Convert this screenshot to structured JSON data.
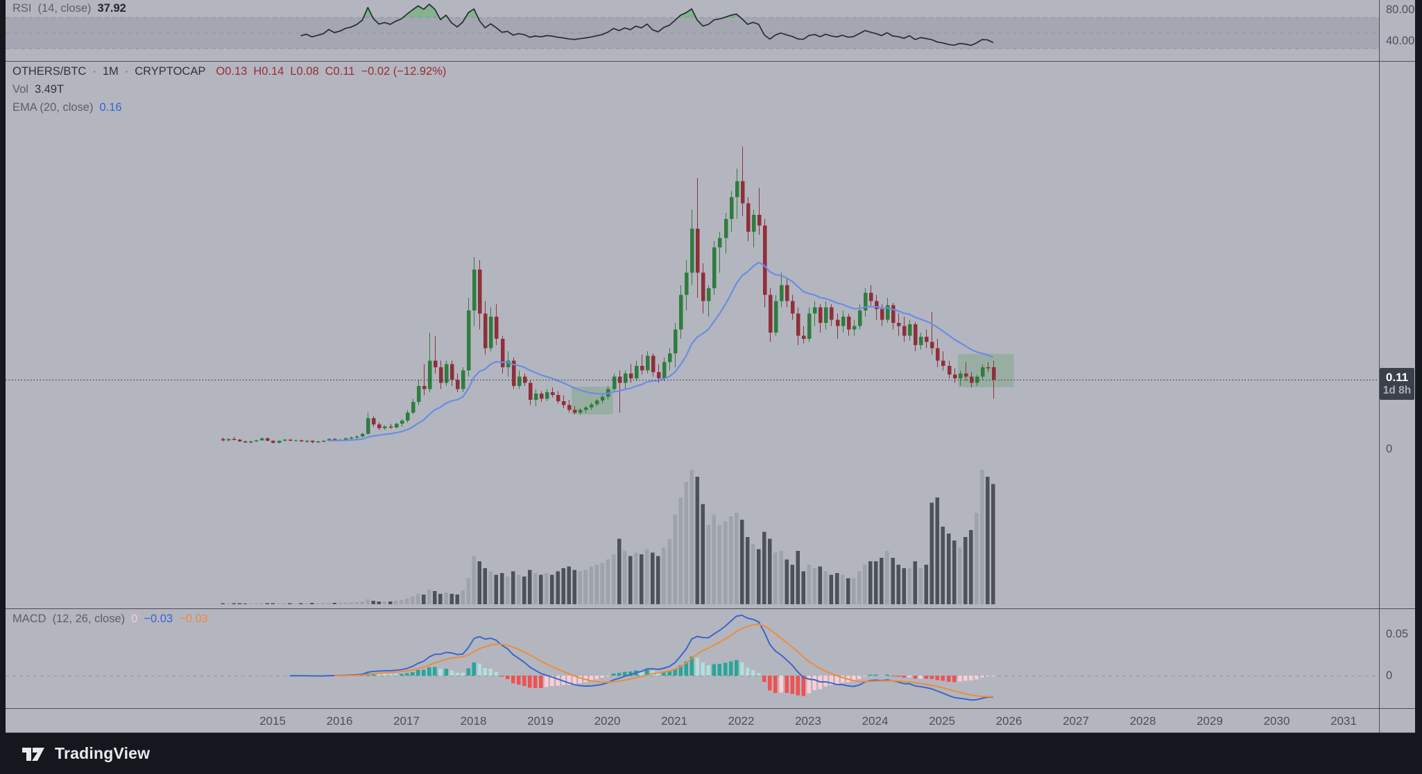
{
  "meta": {
    "dot": "·"
  },
  "rsi_pane": {
    "name": "RSI",
    "params": "(14, close)",
    "value": "37.92",
    "ticks": [
      "80.00",
      "40.00"
    ],
    "bands": [
      70,
      50,
      30
    ]
  },
  "main_pane": {
    "header": {
      "symbol": "OTHERS/BTC",
      "timeframe": "1M",
      "source": "CRYPTOCAP",
      "open": "O0.13",
      "high": "H0.14",
      "low": "L0.08",
      "close": "C0.11",
      "change": "−0.02 (−12.92%)"
    },
    "vol_label": "Vol",
    "vol_value": "3.49T",
    "ema_label": "EMA (20, close)",
    "ema_value": "0.16",
    "price_label": "0.11",
    "countdown": "1d 8h",
    "zero_tick": "0"
  },
  "macd_pane": {
    "name": "MACD",
    "params": "(12, 26, close)",
    "hist_value": "0",
    "macd_value": "−0.03",
    "signal_value": "−0.03",
    "ticks": [
      "0.05",
      "0"
    ]
  },
  "time_axis": {
    "years": [
      "2015",
      "2016",
      "2017",
      "2018",
      "2019",
      "2020",
      "2021",
      "2022",
      "2023",
      "2024",
      "2025",
      "2026",
      "2027",
      "2028",
      "2029",
      "2030",
      "2031"
    ]
  },
  "footer": {
    "brand": "TradingView"
  },
  "colors": {
    "background": "#b3b6bf",
    "frame": "#15171e",
    "candle_up": "#2e7d3e",
    "candle_down": "#8f2f39",
    "ema": "#6c8ce5",
    "rsi_line": "#262a33",
    "rsi_band_fill": "rgba(125,129,141,0.28)",
    "rsi_overbought_fill": "rgba(76,175,80,0.45)",
    "volume_up": "#9ea2ab",
    "volume_down": "#4d515a",
    "macd_line": "#3b66cc",
    "signal_line": "#ee8b3e",
    "hist_pos_grow": "#26a69a",
    "hist_pos_fall": "#b2dfdb",
    "hist_neg_fall": "#f05151",
    "hist_neg_grow": "#ffcdd2",
    "box_fill": "rgba(76,153,76,0.25)",
    "price_line": "#3a3e47",
    "separator": "#4a4e57",
    "badge_bg": "#3c404a"
  },
  "chart_data": {
    "type": "candlestick",
    "symbol": "OTHERS/BTC",
    "timeframe": "1M",
    "exchange": "CRYPTOCAP",
    "current_price": 0.11,
    "price_axis_visible_ticks": [
      0
    ],
    "start_month": "2014-04",
    "fields": [
      "open",
      "high",
      "low",
      "close",
      "volume_T"
    ],
    "months": [
      [
        0.016,
        0.018,
        0.012,
        0.014,
        0.03
      ],
      [
        0.014,
        0.017,
        0.012,
        0.016,
        0.03
      ],
      [
        0.016,
        0.019,
        0.014,
        0.015,
        0.03
      ],
      [
        0.015,
        0.016,
        0.011,
        0.012,
        0.03
      ],
      [
        0.012,
        0.014,
        0.01,
        0.011,
        0.02
      ],
      [
        0.011,
        0.013,
        0.009,
        0.012,
        0.02
      ],
      [
        0.012,
        0.015,
        0.011,
        0.014,
        0.03
      ],
      [
        0.014,
        0.018,
        0.013,
        0.017,
        0.03
      ],
      [
        0.017,
        0.018,
        0.012,
        0.013,
        0.03
      ],
      [
        0.013,
        0.014,
        0.009,
        0.01,
        0.03
      ],
      [
        0.01,
        0.014,
        0.009,
        0.013,
        0.03
      ],
      [
        0.013,
        0.016,
        0.012,
        0.015,
        0.03
      ],
      [
        0.015,
        0.016,
        0.012,
        0.013,
        0.03
      ],
      [
        0.013,
        0.015,
        0.012,
        0.014,
        0.03
      ],
      [
        0.014,
        0.015,
        0.011,
        0.012,
        0.03
      ],
      [
        0.012,
        0.014,
        0.01,
        0.013,
        0.03
      ],
      [
        0.013,
        0.014,
        0.009,
        0.011,
        0.04
      ],
      [
        0.011,
        0.013,
        0.01,
        0.012,
        0.03
      ],
      [
        0.012,
        0.014,
        0.011,
        0.013,
        0.04
      ],
      [
        0.013,
        0.017,
        0.012,
        0.016,
        0.04
      ],
      [
        0.016,
        0.017,
        0.013,
        0.014,
        0.04
      ],
      [
        0.014,
        0.016,
        0.012,
        0.015,
        0.05
      ],
      [
        0.015,
        0.018,
        0.014,
        0.017,
        0.05
      ],
      [
        0.017,
        0.02,
        0.015,
        0.018,
        0.06
      ],
      [
        0.018,
        0.022,
        0.016,
        0.02,
        0.06
      ],
      [
        0.02,
        0.026,
        0.018,
        0.024,
        0.08
      ],
      [
        0.024,
        0.058,
        0.022,
        0.049,
        0.14
      ],
      [
        0.049,
        0.052,
        0.035,
        0.039,
        0.1
      ],
      [
        0.039,
        0.043,
        0.03,
        0.033,
        0.08
      ],
      [
        0.033,
        0.038,
        0.03,
        0.036,
        0.08
      ],
      [
        0.036,
        0.04,
        0.032,
        0.034,
        0.08
      ],
      [
        0.034,
        0.042,
        0.033,
        0.04,
        0.1
      ],
      [
        0.04,
        0.048,
        0.036,
        0.045,
        0.12
      ],
      [
        0.045,
        0.062,
        0.042,
        0.058,
        0.16
      ],
      [
        0.058,
        0.08,
        0.055,
        0.075,
        0.22
      ],
      [
        0.075,
        0.11,
        0.07,
        0.1,
        0.3
      ],
      [
        0.1,
        0.135,
        0.085,
        0.095,
        0.28
      ],
      [
        0.095,
        0.185,
        0.09,
        0.14,
        0.42
      ],
      [
        0.14,
        0.18,
        0.12,
        0.13,
        0.38
      ],
      [
        0.13,
        0.14,
        0.095,
        0.105,
        0.3
      ],
      [
        0.105,
        0.14,
        0.1,
        0.135,
        0.34
      ],
      [
        0.135,
        0.14,
        0.1,
        0.11,
        0.3
      ],
      [
        0.11,
        0.12,
        0.09,
        0.095,
        0.28
      ],
      [
        0.095,
        0.13,
        0.09,
        0.125,
        0.4
      ],
      [
        0.125,
        0.24,
        0.115,
        0.22,
        0.75
      ],
      [
        0.22,
        0.305,
        0.195,
        0.285,
        1.4
      ],
      [
        0.285,
        0.3,
        0.19,
        0.215,
        1.25
      ],
      [
        0.215,
        0.235,
        0.15,
        0.16,
        1.05
      ],
      [
        0.16,
        0.225,
        0.155,
        0.21,
        0.95
      ],
      [
        0.21,
        0.23,
        0.165,
        0.175,
        0.85
      ],
      [
        0.175,
        0.18,
        0.12,
        0.13,
        0.9
      ],
      [
        0.13,
        0.155,
        0.115,
        0.14,
        0.8
      ],
      [
        0.14,
        0.145,
        0.095,
        0.1,
        0.95
      ],
      [
        0.1,
        0.125,
        0.095,
        0.115,
        0.85
      ],
      [
        0.115,
        0.12,
        0.1,
        0.105,
        0.8
      ],
      [
        0.105,
        0.11,
        0.07,
        0.078,
        1.0
      ],
      [
        0.078,
        0.095,
        0.068,
        0.088,
        0.9
      ],
      [
        0.088,
        0.092,
        0.075,
        0.08,
        0.85
      ],
      [
        0.08,
        0.095,
        0.076,
        0.09,
        0.9
      ],
      [
        0.09,
        0.098,
        0.082,
        0.086,
        0.85
      ],
      [
        0.086,
        0.092,
        0.072,
        0.076,
        0.95
      ],
      [
        0.076,
        0.085,
        0.065,
        0.07,
        1.05
      ],
      [
        0.07,
        0.078,
        0.058,
        0.062,
        1.1
      ],
      [
        0.062,
        0.068,
        0.055,
        0.058,
        1.0
      ],
      [
        0.058,
        0.065,
        0.054,
        0.062,
        0.95
      ],
      [
        0.062,
        0.068,
        0.057,
        0.066,
        1.0
      ],
      [
        0.066,
        0.074,
        0.062,
        0.071,
        1.1
      ],
      [
        0.071,
        0.08,
        0.068,
        0.077,
        1.15
      ],
      [
        0.077,
        0.086,
        0.072,
        0.083,
        1.2
      ],
      [
        0.083,
        0.1,
        0.078,
        0.095,
        1.3
      ],
      [
        0.095,
        0.12,
        0.09,
        0.115,
        1.45
      ],
      [
        0.115,
        0.125,
        0.058,
        0.105,
        1.9
      ],
      [
        0.105,
        0.125,
        0.095,
        0.12,
        1.55
      ],
      [
        0.12,
        0.135,
        0.105,
        0.112,
        1.4
      ],
      [
        0.112,
        0.14,
        0.108,
        0.132,
        1.5
      ],
      [
        0.132,
        0.15,
        0.118,
        0.125,
        1.45
      ],
      [
        0.125,
        0.155,
        0.12,
        0.148,
        1.6
      ],
      [
        0.148,
        0.152,
        0.115,
        0.122,
        1.5
      ],
      [
        0.122,
        0.135,
        0.105,
        0.112,
        1.4
      ],
      [
        0.112,
        0.145,
        0.108,
        0.138,
        1.65
      ],
      [
        0.138,
        0.16,
        0.125,
        0.152,
        1.9
      ],
      [
        0.152,
        0.2,
        0.13,
        0.19,
        2.6
      ],
      [
        0.19,
        0.26,
        0.175,
        0.245,
        3.1
      ],
      [
        0.245,
        0.3,
        0.22,
        0.28,
        3.55
      ],
      [
        0.28,
        0.38,
        0.26,
        0.35,
        3.9
      ],
      [
        0.35,
        0.43,
        0.24,
        0.28,
        3.7
      ],
      [
        0.28,
        0.295,
        0.215,
        0.235,
        2.9
      ],
      [
        0.235,
        0.26,
        0.21,
        0.255,
        2.3
      ],
      [
        0.255,
        0.33,
        0.245,
        0.32,
        2.6
      ],
      [
        0.32,
        0.345,
        0.28,
        0.335,
        2.3
      ],
      [
        0.335,
        0.375,
        0.31,
        0.365,
        2.4
      ],
      [
        0.365,
        0.41,
        0.345,
        0.4,
        2.55
      ],
      [
        0.4,
        0.445,
        0.365,
        0.425,
        2.65
      ],
      [
        0.425,
        0.48,
        0.37,
        0.39,
        2.45
      ],
      [
        0.39,
        0.4,
        0.33,
        0.345,
        1.95
      ],
      [
        0.345,
        0.38,
        0.32,
        0.372,
        1.75
      ],
      [
        0.372,
        0.415,
        0.34,
        0.355,
        1.6
      ],
      [
        0.355,
        0.365,
        0.225,
        0.245,
        2.1
      ],
      [
        0.245,
        0.255,
        0.17,
        0.185,
        1.9
      ],
      [
        0.185,
        0.245,
        0.18,
        0.235,
        1.5
      ],
      [
        0.235,
        0.28,
        0.225,
        0.26,
        1.55
      ],
      [
        0.26,
        0.27,
        0.225,
        0.235,
        1.3
      ],
      [
        0.235,
        0.245,
        0.205,
        0.215,
        1.15
      ],
      [
        0.215,
        0.225,
        0.165,
        0.18,
        1.55
      ],
      [
        0.18,
        0.195,
        0.168,
        0.175,
        0.95
      ],
      [
        0.175,
        0.225,
        0.17,
        0.215,
        1.15
      ],
      [
        0.215,
        0.235,
        0.195,
        0.225,
        1.05
      ],
      [
        0.225,
        0.23,
        0.185,
        0.2,
        1.1
      ],
      [
        0.2,
        0.235,
        0.19,
        0.225,
        0.95
      ],
      [
        0.225,
        0.23,
        0.195,
        0.205,
        0.85
      ],
      [
        0.205,
        0.215,
        0.175,
        0.195,
        0.9
      ],
      [
        0.195,
        0.22,
        0.185,
        0.21,
        0.85
      ],
      [
        0.21,
        0.215,
        0.18,
        0.19,
        0.75
      ],
      [
        0.19,
        0.205,
        0.18,
        0.195,
        0.75
      ],
      [
        0.195,
        0.23,
        0.19,
        0.22,
        0.95
      ],
      [
        0.22,
        0.255,
        0.21,
        0.248,
        1.15
      ],
      [
        0.248,
        0.26,
        0.225,
        0.235,
        1.25
      ],
      [
        0.235,
        0.245,
        0.205,
        0.222,
        1.25
      ],
      [
        0.222,
        0.23,
        0.195,
        0.205,
        1.35
      ],
      [
        0.205,
        0.24,
        0.2,
        0.228,
        1.55
      ],
      [
        0.228,
        0.232,
        0.19,
        0.2,
        1.35
      ],
      [
        0.2,
        0.215,
        0.18,
        0.195,
        1.15
      ],
      [
        0.195,
        0.21,
        0.17,
        0.18,
        1.05
      ],
      [
        0.18,
        0.205,
        0.172,
        0.198,
        1.05
      ],
      [
        0.198,
        0.202,
        0.155,
        0.165,
        1.25
      ],
      [
        0.165,
        0.185,
        0.158,
        0.178,
        1.05
      ],
      [
        0.178,
        0.19,
        0.16,
        0.17,
        1.15
      ],
      [
        0.17,
        0.218,
        0.15,
        0.16,
        2.95
      ],
      [
        0.16,
        0.175,
        0.13,
        0.14,
        3.1
      ],
      [
        0.14,
        0.155,
        0.125,
        0.132,
        2.25
      ],
      [
        0.132,
        0.14,
        0.112,
        0.118,
        2.05
      ],
      [
        0.118,
        0.128,
        0.105,
        0.112,
        1.85
      ],
      [
        0.112,
        0.125,
        0.1,
        0.12,
        1.65
      ],
      [
        0.12,
        0.138,
        0.108,
        0.115,
        1.95
      ],
      [
        0.115,
        0.122,
        0.098,
        0.105,
        2.15
      ],
      [
        0.105,
        0.118,
        0.1,
        0.115,
        2.65
      ],
      [
        0.115,
        0.135,
        0.11,
        0.13,
        3.9
      ],
      [
        0.13,
        0.138,
        0.122,
        0.128,
        3.7
      ],
      [
        0.13,
        0.14,
        0.08,
        0.11,
        3.49
      ]
    ],
    "indicators": {
      "ema": {
        "period": 20,
        "current": 0.16
      },
      "rsi": {
        "period": 14,
        "current": 37.92,
        "bands": [
          70,
          50,
          30
        ],
        "axis_ticks": [
          80,
          40
        ]
      },
      "macd": {
        "fast": 12,
        "slow": 26,
        "signal": 9,
        "current_hist": 0,
        "current_macd": -0.03,
        "current_signal": -0.03,
        "axis_ticks": [
          0.05,
          0
        ]
      },
      "volume": {
        "current_T": 3.49
      }
    },
    "highlight_boxes": [
      {
        "from_index": 63.0,
        "to_index": 69.4,
        "price_low": 0.055,
        "price_high": 0.099
      },
      {
        "from_index": 132.2,
        "to_index": 141.2,
        "price_low": 0.098,
        "price_high": 0.151
      }
    ],
    "price_line_level": 0.11
  }
}
